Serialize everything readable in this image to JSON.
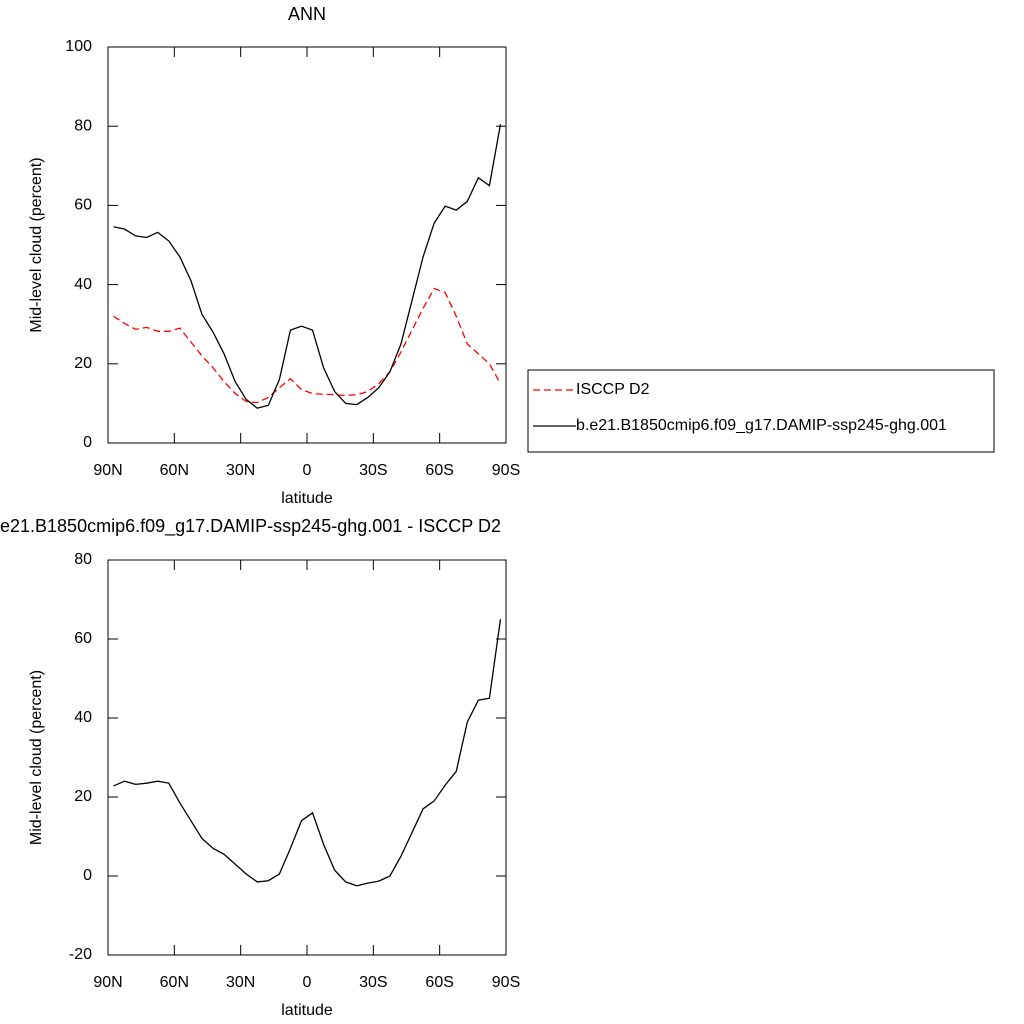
{
  "chart_data": [
    {
      "type": "line",
      "title": "ANN",
      "x_label": "latitude",
      "y_label": "Mid-level cloud (percent)",
      "x": [
        87.5,
        82.5,
        77.5,
        72.5,
        67.5,
        62.5,
        57.5,
        52.5,
        47.5,
        42.5,
        37.5,
        32.5,
        27.5,
        22.5,
        17.5,
        12.5,
        7.5,
        2.5,
        -2.5,
        -7.5,
        -12.5,
        -17.5,
        -22.5,
        -27.5,
        -32.5,
        -37.5,
        -42.5,
        -47.5,
        -52.5,
        -57.5,
        -62.5,
        -67.5,
        -72.5,
        -77.5,
        -82.5,
        -87.5
      ],
      "series": [
        {
          "name": "ISCCP D2",
          "color": "#ff0000",
          "line_style": "dashed",
          "values": [
            32,
            30.2,
            28.7,
            29.2,
            28.2,
            28.2,
            29,
            25.5,
            22,
            19,
            15.5,
            12.5,
            10.5,
            10.2,
            11.5,
            14,
            16.2,
            13.5,
            12.5,
            12.3,
            12.2,
            12,
            12.2,
            13,
            15,
            18,
            23,
            28.5,
            34,
            39,
            38,
            32,
            25,
            22.5,
            20,
            15
          ]
        },
        {
          "name": "b.e21.B1850cmip6.f09_g17.DAMIP-ssp245-ghg.001",
          "color": "#000000",
          "line_style": "solid",
          "values": [
            54.6,
            54,
            52.3,
            51.9,
            53.2,
            51,
            47,
            41,
            32.5,
            28,
            22.5,
            15.5,
            11,
            8.8,
            9.5,
            16,
            28.5,
            29.5,
            28.5,
            19,
            13,
            10,
            9.7,
            11.5,
            14,
            18,
            25,
            36,
            47,
            55.5,
            59.8,
            58.8,
            61,
            67,
            65,
            80.5
          ]
        }
      ],
      "xlim": [
        90,
        -90
      ],
      "xticks": [
        {
          "value": 90,
          "label": "90N"
        },
        {
          "value": 60,
          "label": "60N"
        },
        {
          "value": 30,
          "label": "30N"
        },
        0,
        {
          "value": -30,
          "label": "30S"
        },
        {
          "value": -60,
          "label": "60S"
        },
        {
          "value": -90,
          "label": "90S"
        }
      ],
      "ylim": [
        0,
        100
      ],
      "yticks": [
        0,
        20,
        40,
        60,
        80,
        100
      ],
      "legend": "outside-right"
    },
    {
      "type": "line",
      "title": "e21.B1850cmip6.f09_g17.DAMIP-ssp245-ghg.001 - ISCCP D2",
      "x_label": "latitude",
      "y_label": "Mid-level cloud (percent)",
      "x": [
        87.5,
        82.5,
        77.5,
        72.5,
        67.5,
        62.5,
        57.5,
        52.5,
        47.5,
        42.5,
        37.5,
        32.5,
        27.5,
        22.5,
        17.5,
        12.5,
        7.5,
        2.5,
        -2.5,
        -7.5,
        -12.5,
        -17.5,
        -22.5,
        -27.5,
        -32.5,
        -37.5,
        -42.5,
        -47.5,
        -52.5,
        -57.5,
        -62.5,
        -67.5,
        -72.5,
        -77.5,
        -82.5,
        -87.5
      ],
      "color": "#000000",
      "values": [
        22.8,
        24,
        23.2,
        23.5,
        24,
        23.5,
        18.5,
        14,
        9.5,
        7,
        5.5,
        3,
        0.5,
        -1.5,
        -1.2,
        0.5,
        7,
        14,
        16,
        8,
        1.5,
        -1.5,
        -2.5,
        -1.8,
        -1.3,
        0,
        5,
        11,
        17,
        19,
        23,
        26.5,
        39,
        44.5,
        45,
        65
      ],
      "xlim": [
        90,
        -90
      ],
      "xticks": [
        {
          "value": 90,
          "label": "90N"
        },
        {
          "value": 60,
          "label": "60N"
        },
        {
          "value": 30,
          "label": "30N"
        },
        0,
        {
          "value": -30,
          "label": "30S"
        },
        {
          "value": -60,
          "label": "60S"
        },
        {
          "value": -90,
          "label": "90S"
        }
      ],
      "ylim": [
        -20,
        80
      ],
      "yticks": [
        -20,
        0,
        20,
        40,
        60,
        80
      ]
    }
  ]
}
